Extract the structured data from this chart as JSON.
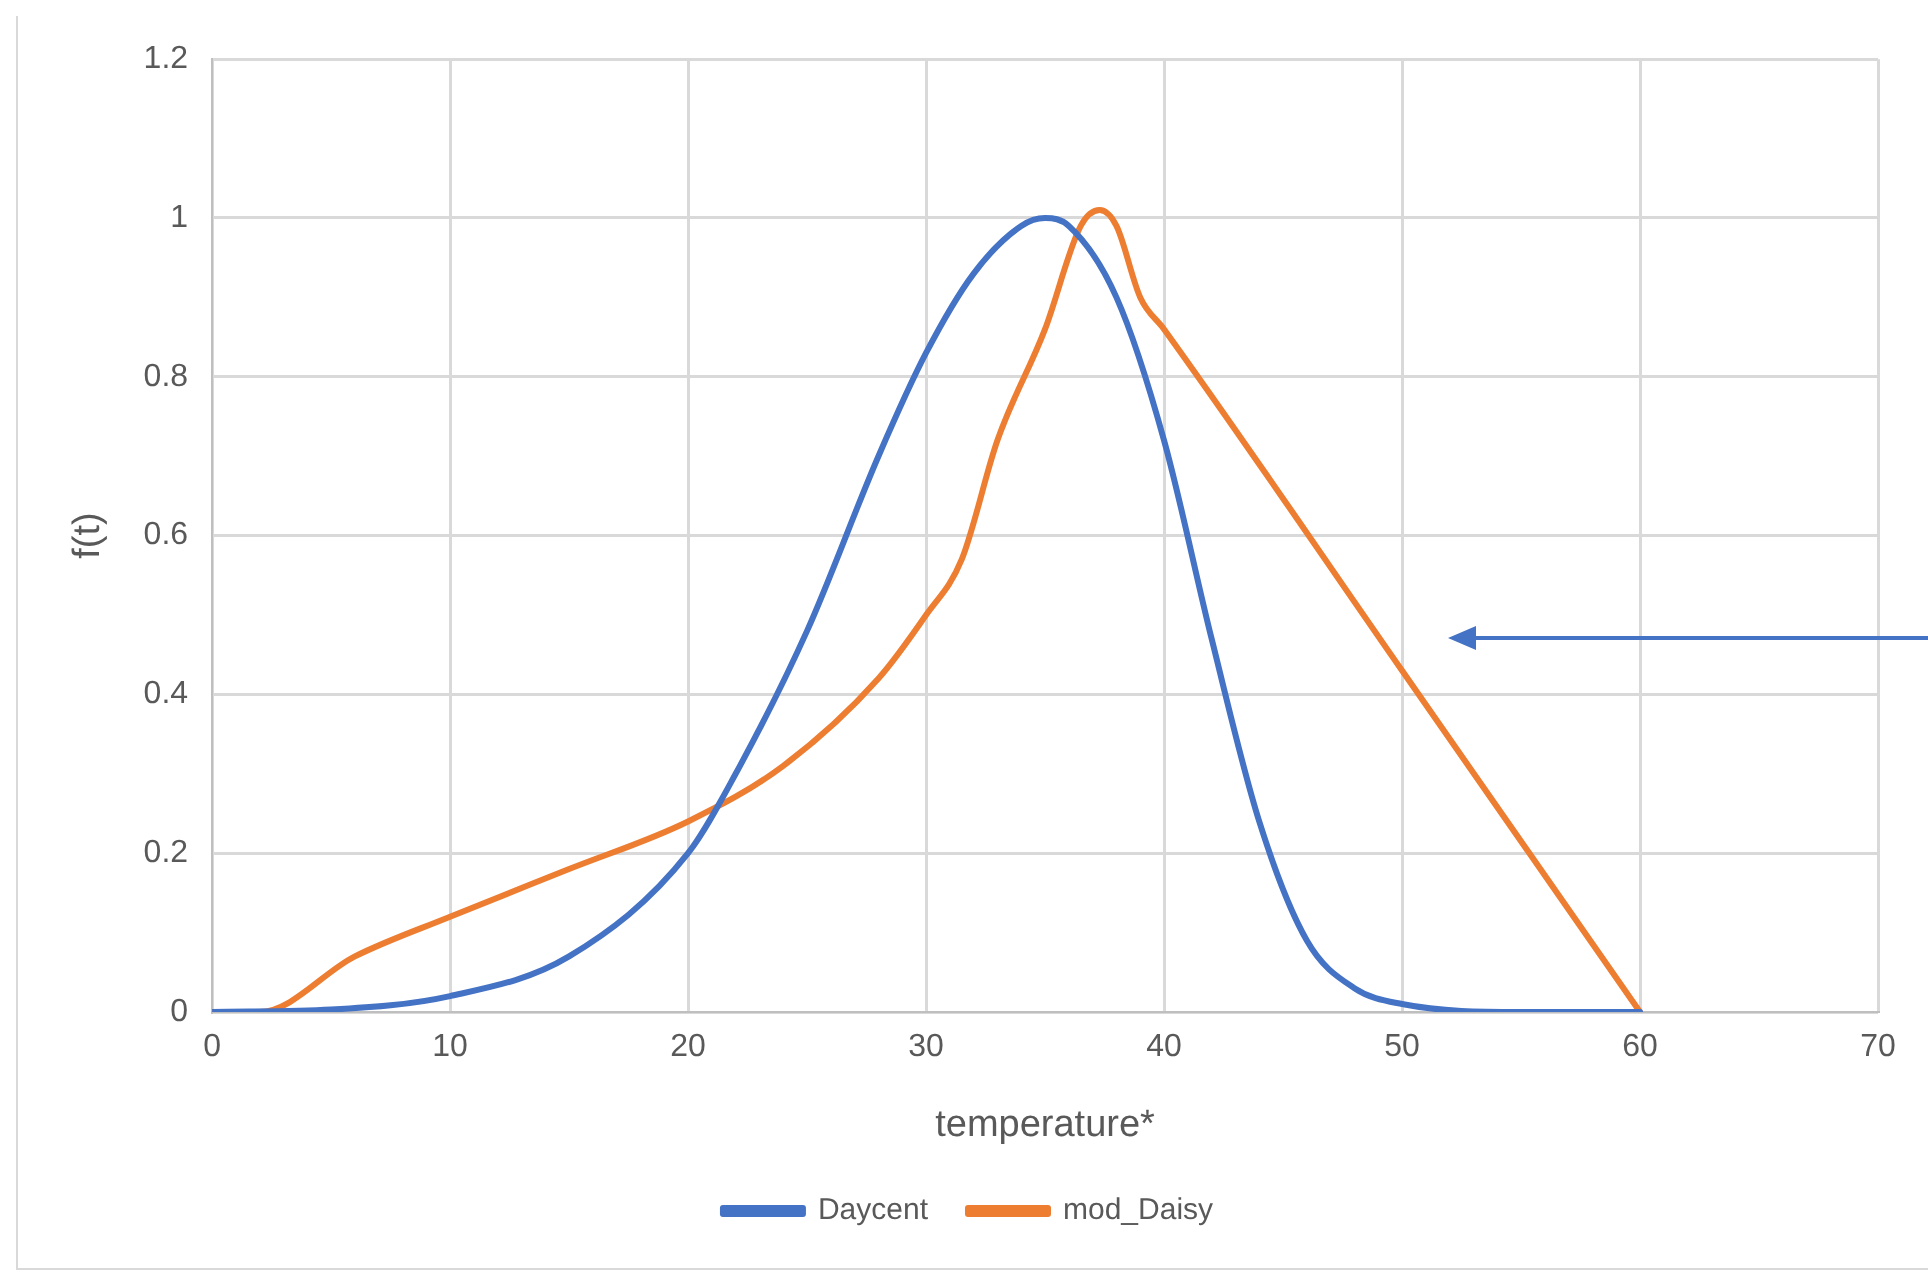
{
  "chart_data": {
    "type": "line",
    "xlabel": "temperature*",
    "ylabel": "f(t)",
    "xlim": [
      0,
      70
    ],
    "xticks": [
      0,
      10,
      20,
      30,
      40,
      50,
      60,
      70
    ],
    "ylim": [
      0,
      1.2
    ],
    "yticks": [
      0,
      0.2,
      0.4,
      0.6,
      0.8,
      1,
      1.2
    ],
    "grid": true,
    "legend": "bottom",
    "marker": "none",
    "line_style": "solid",
    "series": [
      {
        "name": "Daycent",
        "color": "#4472c4",
        "x": [
          0,
          5,
          10,
          15,
          20,
          22,
          25,
          28,
          30,
          32,
          34,
          35,
          36,
          38,
          40,
          42,
          44,
          46,
          48,
          50,
          55,
          60
        ],
        "values": [
          0,
          0.003,
          0.02,
          0.07,
          0.2,
          0.3,
          0.48,
          0.7,
          0.83,
          0.93,
          0.99,
          1,
          0.99,
          0.9,
          0.72,
          0.47,
          0.24,
          0.09,
          0.03,
          0.01,
          0,
          0
        ]
      },
      {
        "name": "mod_Daisy",
        "color": "#ed7d31",
        "x": [
          0,
          2,
          6,
          10,
          15,
          20,
          24,
          28,
          30,
          31.5,
          33,
          35,
          36.5,
          37.3,
          38,
          39,
          40,
          50,
          60
        ],
        "values": [
          0,
          0,
          0.07,
          0.12,
          0.18,
          0.24,
          0.31,
          0.42,
          0.5,
          0.57,
          0.72,
          0.86,
          0.99,
          1.01,
          0.99,
          0.9,
          0.86,
          0.43,
          0
        ]
      }
    ]
  }
}
